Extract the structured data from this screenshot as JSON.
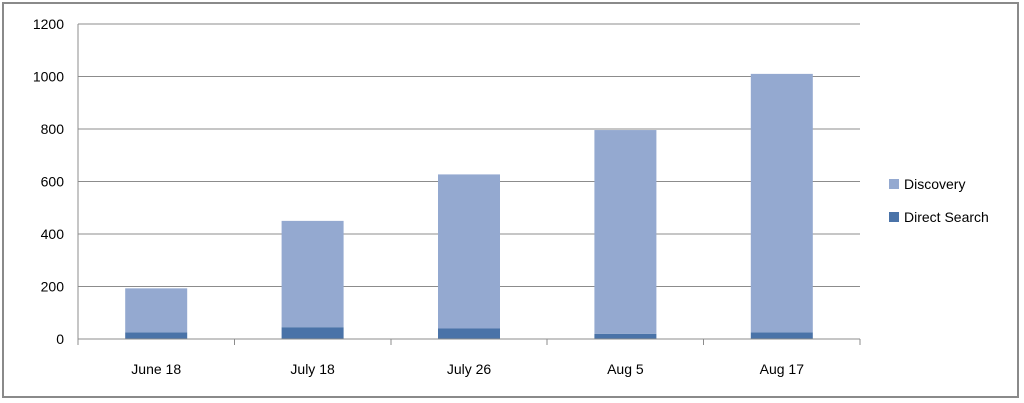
{
  "chart_data": {
    "type": "bar",
    "stacked": true,
    "categories": [
      "June 18",
      "July 18",
      "July 26",
      "Aug 5",
      "Aug 17"
    ],
    "series": [
      {
        "name": "Direct Search",
        "color": "#4a73a8",
        "values": [
          25,
          45,
          40,
          20,
          25
        ]
      },
      {
        "name": "Discovery",
        "color": "#94a9d0",
        "values": [
          168,
          405,
          587,
          776,
          985
        ]
      }
    ],
    "ylim": [
      0,
      1200
    ],
    "yticks": [
      0,
      200,
      400,
      600,
      800,
      1000,
      1200
    ],
    "grid": true,
    "legend_position": "right",
    "legend": [
      {
        "name": "Discovery",
        "color": "#94a9d0"
      },
      {
        "name": "Direct Search",
        "color": "#4a73a8"
      }
    ]
  }
}
